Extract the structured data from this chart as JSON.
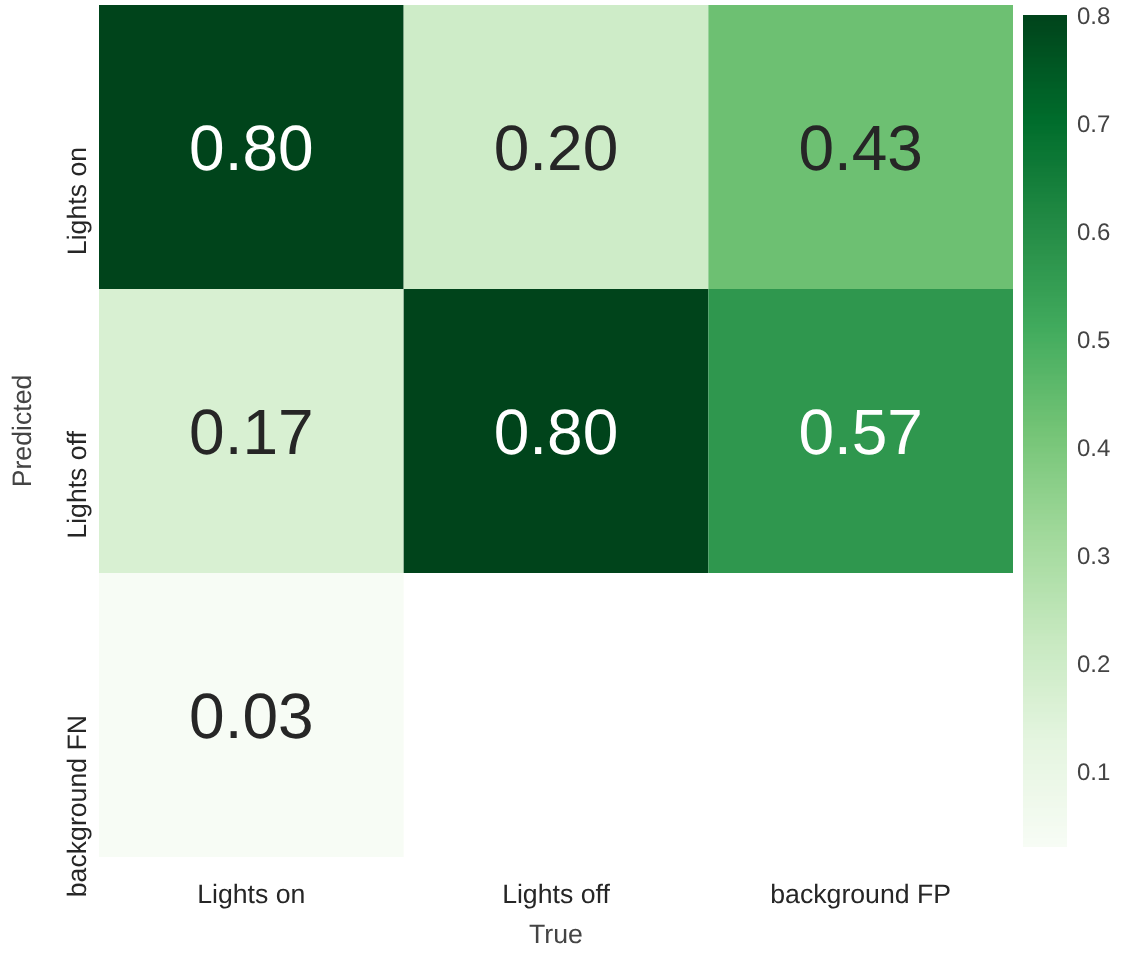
{
  "chart_data": {
    "type": "heatmap",
    "xlabel": "True",
    "ylabel": "Predicted",
    "categories": [
      "Lights on",
      "Lights off",
      "background FP"
    ],
    "y_categories": [
      "Lights on",
      "Lights off",
      "background FN"
    ],
    "cells": [
      [
        0.8,
        0.2,
        0.43
      ],
      [
        0.17,
        0.8,
        0.57
      ],
      [
        0.03,
        null,
        null
      ]
    ],
    "cell_labels": [
      [
        "0.80",
        "0.20",
        "0.43"
      ],
      [
        "0.17",
        "0.80",
        "0.57"
      ],
      [
        "0.03",
        null,
        null
      ]
    ],
    "clim": [
      0.03,
      0.8
    ],
    "cticks": [
      0.1,
      0.2,
      0.3,
      0.4,
      0.5,
      0.6,
      0.7,
      0.8
    ]
  }
}
